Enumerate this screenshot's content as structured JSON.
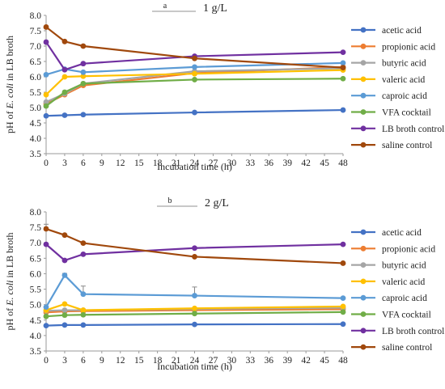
{
  "chart_data": [
    {
      "type": "line",
      "panel_label": "a",
      "title": "1 g/L",
      "xlabel": "Incubation time (h)",
      "ylabel_parts": [
        "pH of ",
        "E. coli",
        " in LB broth"
      ],
      "x": [
        0,
        3,
        6,
        24,
        48
      ],
      "xticks": [
        0,
        3,
        6,
        9,
        12,
        15,
        18,
        21,
        24,
        27,
        30,
        33,
        36,
        39,
        42,
        45,
        48
      ],
      "yticks": [
        "3.5",
        "4.0",
        "4.5",
        "5.0",
        "5.5",
        "6.0",
        "6.5",
        "7.0",
        "7.5",
        "8.0"
      ],
      "xlim": [
        0,
        48
      ],
      "ylim": [
        3.5,
        8.0
      ],
      "grid": false,
      "legend_position": "right",
      "series": [
        {
          "name": "acetic acid",
          "color": "#4472C4",
          "values": [
            4.73,
            4.75,
            4.77,
            4.84,
            4.92
          ]
        },
        {
          "name": "propionic acid",
          "color": "#ED7D31",
          "values": [
            5.12,
            5.42,
            5.72,
            6.12,
            6.32
          ]
        },
        {
          "name": "butyric acid",
          "color": "#A5A5A5",
          "values": [
            5.18,
            5.45,
            5.78,
            6.18,
            6.28
          ]
        },
        {
          "name": "valeric acid",
          "color": "#FFC000",
          "values": [
            5.42,
            6.0,
            6.02,
            6.1,
            6.22
          ]
        },
        {
          "name": "caproic acid",
          "color": "#5B9BD5",
          "values": [
            6.07,
            6.25,
            6.15,
            6.32,
            6.45
          ]
        },
        {
          "name": "VFA cocktail",
          "color": "#70AD47",
          "values": [
            5.05,
            5.5,
            5.78,
            5.91,
            5.94
          ]
        },
        {
          "name": "LB broth control",
          "color": "#7030A0",
          "values": [
            7.13,
            6.23,
            6.43,
            6.67,
            6.8
          ]
        },
        {
          "name": "saline control",
          "color": "#A0480C",
          "values": [
            7.62,
            7.15,
            7.0,
            6.6,
            6.3
          ]
        }
      ]
    },
    {
      "type": "line",
      "panel_label": "b",
      "title": "2 g/L",
      "xlabel": "Incubation time (h)",
      "ylabel_parts": [
        "pH of ",
        "E. coli",
        " in LB broth"
      ],
      "x": [
        0,
        3,
        6,
        24,
        48
      ],
      "xticks": [
        0,
        3,
        6,
        9,
        12,
        15,
        18,
        21,
        24,
        27,
        30,
        33,
        36,
        39,
        42,
        45,
        48
      ],
      "yticks": [
        "3.5",
        "4.0",
        "4.5",
        "5.0",
        "5.5",
        "6.0",
        "6.5",
        "7.0",
        "7.5",
        "8.0"
      ],
      "xlim": [
        0,
        48
      ],
      "ylim": [
        3.5,
        8.0
      ],
      "grid": false,
      "legend_position": "right",
      "series": [
        {
          "name": "acetic acid",
          "color": "#4472C4",
          "values": [
            4.32,
            4.34,
            4.34,
            4.36,
            4.37
          ]
        },
        {
          "name": "propionic acid",
          "color": "#ED7D31",
          "values": [
            4.75,
            4.78,
            4.79,
            4.82,
            4.85
          ]
        },
        {
          "name": "butyric acid",
          "color": "#A5A5A5",
          "values": [
            4.8,
            4.82,
            4.82,
            4.86,
            4.9
          ]
        },
        {
          "name": "valeric acid",
          "color": "#FFC000",
          "values": [
            4.82,
            5.02,
            4.82,
            4.88,
            4.94
          ]
        },
        {
          "name": "caproic acid",
          "color": "#5B9BD5",
          "values": [
            4.92,
            5.95,
            5.34,
            5.29,
            5.21
          ],
          "errors": [
            0,
            0.06,
            0.26,
            0.28,
            0
          ]
        },
        {
          "name": "VFA cocktail",
          "color": "#70AD47",
          "values": [
            4.62,
            4.66,
            4.67,
            4.71,
            4.76
          ]
        },
        {
          "name": "LB broth control",
          "color": "#7030A0",
          "values": [
            6.95,
            6.43,
            6.63,
            6.83,
            6.95
          ]
        },
        {
          "name": "saline control",
          "color": "#A0480C",
          "values": [
            7.45,
            7.25,
            6.99,
            6.55,
            6.34
          ],
          "errors": [
            0.15,
            0,
            0,
            0,
            0
          ]
        }
      ]
    }
  ]
}
